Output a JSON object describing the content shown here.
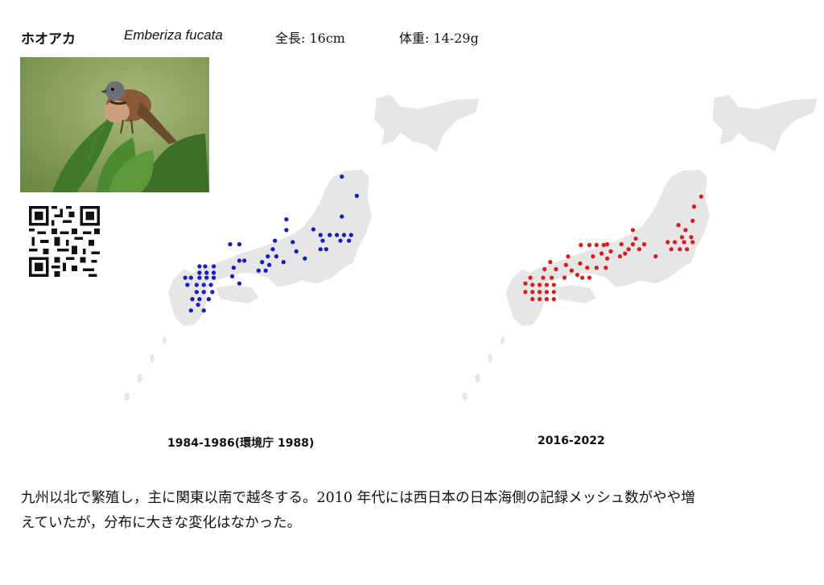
{
  "header": {
    "name_ja": "ホオアカ",
    "scientific_name": "Emberiza fucata",
    "length": "全長: 16cm",
    "weight": "体重: 14-29g"
  },
  "maps": {
    "left": {
      "caption": "1984-1986(環境庁 1988)",
      "dot_color": "#1a1fb5"
    },
    "right": {
      "caption": "2016-2022",
      "dot_color": "#d61f1f"
    },
    "land_color": "#e6e6e6"
  },
  "description": {
    "line1": "九州以北で繁殖し，主に関東以南で越冬する。2010 年代には西日本の日本海側の記録メッシュ数がやや増",
    "line2": "えていたが，分布に大きな変化はなかった。"
  }
}
